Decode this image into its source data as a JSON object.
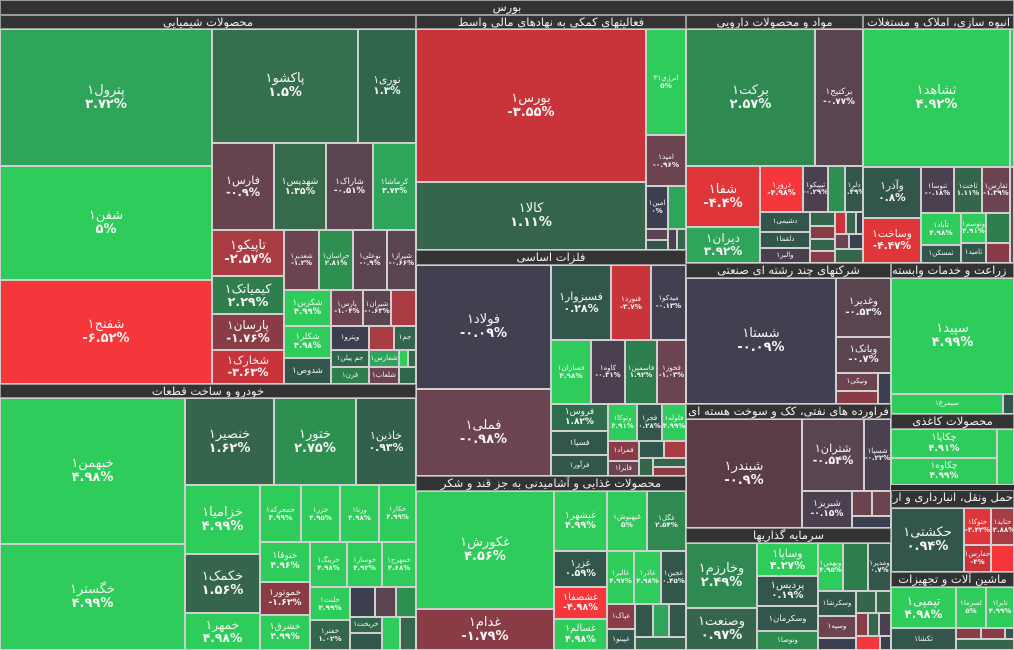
{
  "market_title": "بورس",
  "sectors": [
    {
      "title": "محصولات شیمیایی"
    },
    {
      "title": "خودرو و ساخت قطعات"
    },
    {
      "title": "فعالیتهای کمکی به نهادهای مالی واسط"
    },
    {
      "title": "فلزات اساسی"
    },
    {
      "title": "محصولات غذایی و آشامیدنی به جز قند و شکر"
    },
    {
      "title": "مواد و محصولات دارویی"
    },
    {
      "title": "انبوه سازی، املاک و مستغلات"
    },
    {
      "title": "شرکتهای چند رشته ای صنعتی"
    },
    {
      "title": "زراعت و خدمات وابسته"
    },
    {
      "title": "فراورده های نفتی، کک و سوخت هسته ای"
    },
    {
      "title": "محصولات کاغذی"
    },
    {
      "title": "حمل ونقل، انبارداری و ارتباطات"
    },
    {
      "title": "ماشین آلات و تجهیزات"
    },
    {
      "title": "سرمایه گذاریها"
    }
  ],
  "tiles": [
    {
      "name": "پترول۱",
      "pct": "۳.۷۲%",
      "c": "#2ea55a"
    },
    {
      "name": "شفن۱",
      "pct": "۵%",
      "c": "#2ecc5a"
    },
    {
      "name": "شفنج۱",
      "pct": "-۶.۵۲%",
      "c": "#f5363a"
    },
    {
      "name": "پاکشو۱",
      "pct": "۱.۵%",
      "c": "#35704e"
    },
    {
      "name": "نوری۱",
      "pct": "۱.۳%",
      "c": "#32664c"
    },
    {
      "name": "فارس۱",
      "pct": "-۰.۹%",
      "c": "#65444e"
    },
    {
      "name": "شهدیس۱",
      "pct": "۱.۳۵%",
      "c": "#356a4b"
    },
    {
      "name": "شاراک۱",
      "pct": "-۰.۵۱%",
      "c": "#5a4450"
    },
    {
      "name": "کرماشا۱",
      "pct": "۳.۷۳%",
      "c": "#2ea55a"
    },
    {
      "name": "تاپیکو۱",
      "pct": "-۲.۵۷%",
      "c": "#a83c42"
    },
    {
      "name": "شغدیر۱",
      "pct": "-۱.۲%",
      "c": "#6b4450"
    },
    {
      "name": "خراسان۱",
      "pct": "۲.۸۱%",
      "c": "#2e9050"
    },
    {
      "name": "بوعلی۱",
      "pct": "-۰.۹%",
      "c": "#5a4450"
    },
    {
      "name": "شیراز۱",
      "pct": "-۰.۶۶%",
      "c": "#5a4450"
    },
    {
      "name": "کیمیاتک۱",
      "pct": "۲.۲۹%",
      "c": "#2e7e4e"
    },
    {
      "name": "پارسان۱",
      "pct": "-۱.۷۶%",
      "c": "#8a3c46"
    },
    {
      "name": "شخارک۱",
      "pct": "-۳.۶۳%",
      "c": "#c8343a"
    },
    {
      "name": "شکربن۱",
      "pct": "۴.۹۹%",
      "c": "#2ecc5a"
    },
    {
      "name": "شکلر۱",
      "pct": "۴.۹۸%",
      "c": "#2ecc5a"
    },
    {
      "name": "شدوص۱",
      "pct": "",
      "c": "#32564c"
    },
    {
      "name": "پارس۱",
      "pct": "-۱.۰۴%",
      "c": "#6b4450"
    },
    {
      "name": "شیران۱",
      "pct": "-۰.۶۳%",
      "c": "#5a4450"
    },
    {
      "name": "وپترو۱",
      "pct": "",
      "c": "#3c3f50"
    },
    {
      "name": "جم۱",
      "pct": "",
      "c": "#32664c"
    },
    {
      "name": "جم پیلن۱",
      "pct": "",
      "c": "#32664c"
    },
    {
      "name": "قرن۱",
      "pct": "",
      "c": "#2e7e4e"
    },
    {
      "name": "شفارس۱",
      "pct": "",
      "c": "#2ea55a"
    },
    {
      "name": "شلعاب۱",
      "pct": "",
      "c": "#6b4450"
    },
    {
      "name": "خبهمن۱",
      "pct": "۴.۹۸%",
      "c": "#2ecc5a"
    },
    {
      "name": "خگستر۱",
      "pct": "۴.۹۹%",
      "c": "#2ecc5a"
    },
    {
      "name": "خنصیر۱",
      "pct": "۱.۶۲%",
      "c": "#35664c"
    },
    {
      "name": "ختور۱",
      "pct": "۲.۷۵%",
      "c": "#2e9050"
    },
    {
      "name": "خاذین۱",
      "pct": "۰.۹۳%",
      "c": "#32604c"
    },
    {
      "name": "خزامیا۱",
      "pct": "۴.۹۹%",
      "c": "#2ecc5a"
    },
    {
      "name": "خکمک۱",
      "pct": "۱.۵۶%",
      "c": "#35664c"
    },
    {
      "name": "خمهر۱",
      "pct": "۴.۹۸%",
      "c": "#2ecc5a"
    },
    {
      "name": "خمحرکه۱",
      "pct": "۴.۹۹%",
      "c": "#2ecc5a"
    },
    {
      "name": "خزر۱",
      "pct": "۴.۹۵%",
      "c": "#2ecc5a"
    },
    {
      "name": "ورنا۱",
      "pct": "۴.۹۸%",
      "c": "#2ecc5a"
    },
    {
      "name": "خکار۱",
      "pct": "۴.۹۹%",
      "c": "#2ecc5a"
    },
    {
      "name": "ختوقا۱",
      "pct": "۴.۹۶%",
      "c": "#2ecc5a"
    },
    {
      "name": "خرینگ۱",
      "pct": "۴.۹۸%",
      "c": "#2ecc5a"
    },
    {
      "name": "خوساز۱",
      "pct": "۴.۹۲%",
      "c": "#2ecc5a"
    },
    {
      "name": "خمهرج۱",
      "pct": "۴.۶۸%",
      "c": "#2ecc5a"
    },
    {
      "name": "خموتور۱",
      "pct": "-۱.۶۳%",
      "c": "#8a3c46"
    },
    {
      "name": "خشرق۱",
      "pct": "۴.۹۹%",
      "c": "#2ecc5a"
    },
    {
      "name": "خلنت۱",
      "pct": "۴.۹۹%",
      "c": "#2ecc5a"
    },
    {
      "name": "خفنر۱",
      "pct": "۱.۰۲%",
      "c": "#35664c"
    },
    {
      "name": "خریخت۱",
      "pct": "",
      "c": "#32664c"
    },
    {
      "name": "بورس۱",
      "pct": "-۳.۵۵%",
      "c": "#c8343a"
    },
    {
      "name": "کالا۱",
      "pct": "۱.۱۱%",
      "c": "#35664c"
    },
    {
      "name": "انرژی۳۱",
      "pct": "۵%",
      "c": "#2ecc5a"
    },
    {
      "name": "امید۱",
      "pct": "-۰.۹۶%",
      "c": "#6b4450"
    },
    {
      "name": "امین۱",
      "pct": "۰%",
      "c": "#3c3f50"
    },
    {
      "name": "فولاد۱",
      "pct": "-۰.۰۹%",
      "c": "#424050"
    },
    {
      "name": "فملی۱",
      "pct": "-۰.۹۸%",
      "c": "#6b4450"
    },
    {
      "name": "فسبزوار۱",
      "pct": "۰.۲۸%",
      "c": "#32564c"
    },
    {
      "name": "فنورد۱",
      "pct": "-۳.۷%",
      "c": "#c8343a"
    },
    {
      "name": "میدکو۱",
      "pct": "-۰.۱۳%",
      "c": "#424050"
    },
    {
      "name": "فسازان۱",
      "pct": "۴.۹۸%",
      "c": "#2ecc5a"
    },
    {
      "name": "کاوه۱",
      "pct": "-۰.۳۱%",
      "c": "#4a4050"
    },
    {
      "name": "فاسمین۱",
      "pct": "۱.۹۲%",
      "c": "#2e7e4e"
    },
    {
      "name": "فخوز۱",
      "pct": "-۱.۰۳%",
      "c": "#6b4450"
    },
    {
      "name": "فروس۱",
      "pct": "۱.۸۲%",
      "c": "#2e6e4e"
    },
    {
      "name": "فسپا۱",
      "pct": "",
      "c": "#32564c"
    },
    {
      "name": "فرآور۱",
      "pct": "",
      "c": "#32564c"
    },
    {
      "name": "وتوکا۱",
      "pct": "۴.۹۱%",
      "c": "#2ecc5a"
    },
    {
      "name": "فجر۱",
      "pct": "۰.۲۸%",
      "c": "#32564c"
    },
    {
      "name": "فلوله۱",
      "pct": "۴.۹۹%",
      "c": "#2ecc5a"
    },
    {
      "name": "فمراد۱",
      "pct": "",
      "c": "#8a3c46"
    },
    {
      "name": "فایرا۱",
      "pct": "",
      "c": "#6b4450"
    },
    {
      "name": "غکورش۱",
      "pct": "۴.۵۶%",
      "c": "#2ecc5a"
    },
    {
      "name": "غدام۱",
      "pct": "-۱.۷۹%",
      "c": "#8a3c46"
    },
    {
      "name": "غبشهر۱",
      "pct": "۴.۹۹%",
      "c": "#2ecc5a"
    },
    {
      "name": "غبهنوش۱",
      "pct": "۵%",
      "c": "#2ecc5a"
    },
    {
      "name": "غگل۱",
      "pct": "۲.۵۴%",
      "c": "#2e8a50"
    },
    {
      "name": "غزر۱",
      "pct": "۰.۵۹%",
      "c": "#32564c"
    },
    {
      "name": "غشصفا۱",
      "pct": "-۴.۹۸%",
      "c": "#f5363a"
    },
    {
      "name": "غسالم۱",
      "pct": "۴.۹۸%",
      "c": "#2ecc5a"
    },
    {
      "name": "غالبر۱",
      "pct": "۴.۹۷%",
      "c": "#2ecc5a"
    },
    {
      "name": "غاذر۱",
      "pct": "۴.۹۸%",
      "c": "#2ecc5a"
    },
    {
      "name": "غچین۱",
      "pct": "۰.۴۵%",
      "c": "#32564c"
    },
    {
      "name": "غپاک۱",
      "pct": "",
      "c": "#8a3c46"
    },
    {
      "name": "غپینو۱",
      "pct": "",
      "c": "#32564c"
    },
    {
      "name": "برکت۱",
      "pct": "۲.۵۷%",
      "c": "#2e8a50"
    },
    {
      "name": "برکتیج۱",
      "pct": "-۰.۷۷%",
      "c": "#5a4450"
    },
    {
      "name": "شفا۱",
      "pct": "-۴.۴%",
      "c": "#e0363a"
    },
    {
      "name": "دیران۱",
      "pct": "۳.۹۲%",
      "c": "#2ea55a"
    },
    {
      "name": "دروز۱",
      "pct": "-۴.۹۸%",
      "c": "#f5363a"
    },
    {
      "name": "تیپیکو۱",
      "pct": "-۰.۲۹%",
      "c": "#4a4050"
    },
    {
      "name": "دلر۱",
      "pct": "۰.۴۹%",
      "c": "#32564c"
    },
    {
      "name": "دشیمی۱",
      "pct": "",
      "c": "#32564c"
    },
    {
      "name": "دلقما۱",
      "pct": "",
      "c": "#32564c"
    },
    {
      "name": "والبر۱",
      "pct": "",
      "c": "#4a4050"
    },
    {
      "name": "ثشاهد۱",
      "pct": "۴.۹۲%",
      "c": "#2ecc5a"
    },
    {
      "name": "وآذر۱",
      "pct": "۰.۸%",
      "c": "#32564c"
    },
    {
      "name": "ثنوسا۱",
      "pct": "-۰.۱۸%",
      "c": "#4a4050"
    },
    {
      "name": "ثاخت۱",
      "pct": "۱.۱۱%",
      "c": "#35664c"
    },
    {
      "name": "ثفارس۱",
      "pct": "-۱.۳۹%",
      "c": "#6b4450"
    },
    {
      "name": "وساخت۱",
      "pct": "-۴.۴۷%",
      "c": "#e0363a"
    },
    {
      "name": "ثآباد۱",
      "pct": "۴.۹۸%",
      "c": "#2ecc5a"
    },
    {
      "name": "وتوسم۱",
      "pct": "۴.۹۱%",
      "c": "#2ecc5a"
    },
    {
      "name": "ثمسکن۱",
      "pct": "",
      "c": "#32564c"
    },
    {
      "name": "ثامید۱",
      "pct": "",
      "c": "#32564c"
    },
    {
      "name": "شستا۱",
      "pct": "-۰.۰۹%",
      "c": "#424050"
    },
    {
      "name": "وغدیر۱",
      "pct": "-۰.۵۳%",
      "c": "#5a4450"
    },
    {
      "name": "وبانک۱",
      "pct": "-۰.۷%",
      "c": "#5a4450"
    },
    {
      "name": "ونیکی۱",
      "pct": "",
      "c": "#6b4450"
    },
    {
      "name": "سپید۱",
      "pct": "۴.۹۹%",
      "c": "#2ecc5a"
    },
    {
      "name": "سیمرغ۱",
      "pct": "",
      "c": "#2ecc5a"
    },
    {
      "name": "شبندر۱",
      "pct": "-۰.۹%",
      "c": "#5a3c48"
    },
    {
      "name": "شتران۱",
      "pct": "-۰.۵۴%",
      "c": "#5a4450"
    },
    {
      "name": "شسپا۱",
      "pct": "-۰.۲۲%",
      "c": "#4a4050"
    },
    {
      "name": "شبریز۱",
      "pct": "-۰.۱۵%",
      "c": "#4a4050"
    },
    {
      "name": "چکاپا۱",
      "pct": "۴.۹۱%",
      "c": "#2ecc5a"
    },
    {
      "name": "چکاوه۱",
      "pct": "۴.۹۹%",
      "c": "#2ecc5a"
    },
    {
      "name": "حکشتی۱",
      "pct": "۰.۹۴%",
      "c": "#32564c"
    },
    {
      "name": "حتوکا۱",
      "pct": "-۴.۴۲%",
      "c": "#e0363a"
    },
    {
      "name": "حتاید۱",
      "pct": "-۲.۸۸%",
      "c": "#a83c42"
    },
    {
      "name": "حفارس۱",
      "pct": "-۴%",
      "c": "#c8343a"
    },
    {
      "name": "تپمپی۱",
      "pct": "۴.۹۸%",
      "c": "#2ecc5a"
    },
    {
      "name": "لسرما۱",
      "pct": "۵%",
      "c": "#2ecc5a"
    },
    {
      "name": "تاپرا۱",
      "pct": "۴.۹۹%",
      "c": "#2ecc5a"
    },
    {
      "name": "تکشا۱",
      "pct": "",
      "c": "#32564c"
    },
    {
      "name": "وخارزم۱",
      "pct": "۲.۴۹%",
      "c": "#2e8a50"
    },
    {
      "name": "وصنعت۱",
      "pct": "۰.۹۷%",
      "c": "#35664c"
    },
    {
      "name": "وساپا۱",
      "pct": "۴.۲۷%",
      "c": "#2ecc5a"
    },
    {
      "name": "پردیس۱",
      "pct": "۰.۱۹%",
      "c": "#32564c"
    },
    {
      "name": "وسکرمان۱",
      "pct": "",
      "c": "#32564c"
    },
    {
      "name": "وتوصا۱",
      "pct": "",
      "c": "#2e8a50"
    },
    {
      "name": "وبهمن۱",
      "pct": "۴.۹۵%",
      "c": "#2ecc5a"
    },
    {
      "name": "ومدیر۱",
      "pct": "۰.۷%",
      "c": "#32564c"
    },
    {
      "name": "وسکرشا۱",
      "pct": "",
      "c": "#32564c"
    },
    {
      "name": "وسپه۱",
      "pct": "",
      "c": "#6b4450"
    }
  ]
}
